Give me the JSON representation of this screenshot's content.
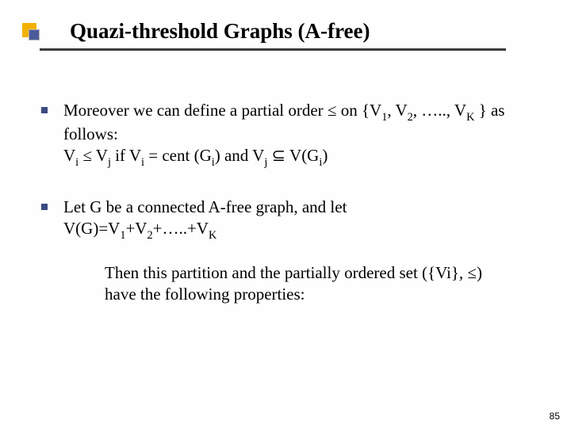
{
  "colors": {
    "ornament_gold": "#f2b100",
    "ornament_blue": "#4b5a9a",
    "underline": "#3b3b3b",
    "bullet": "#3b4a82",
    "text": "#000000",
    "background": "#fefefe"
  },
  "typography": {
    "title_fontsize_pt": 20,
    "title_weight": "bold",
    "body_fontsize_pt": 16,
    "body_family": "Times New Roman",
    "pagenum_fontsize_pt": 9,
    "pagenum_family": "Arial"
  },
  "title": "Quazi-threshold Graphs (A-free)",
  "bullets": [
    {
      "line1": "Moreover we can define a partial order ≤ on {V",
      "s1": "1",
      "mid1": ", V",
      "s2": "2",
      "mid2": ", ….., V",
      "s3": "K",
      "end1": " } as follows:",
      "line2a": "V",
      "l2s1": "i",
      "l2mid1": " ≤ V",
      "l2s2": "j",
      "l2mid2": "  if  V",
      "l2s3": "i",
      "l2mid3": " = cent (G",
      "l2s4": "i",
      "l2mid4": ") and V",
      "l2s5": "j",
      "l2mid5": " ",
      "subset": "⊆",
      "l2mid6": " V(G",
      "l2s6": "i",
      "l2end": ")"
    },
    {
      "b2line1": "Let G be a connected A-free graph, and let",
      "b2a": "V(G)=V",
      "b2s1": "1",
      "b2m1": "+V",
      "b2s2": "2",
      "b2m2": "+…..+V",
      "b2s3": "K"
    }
  ],
  "continuation": "Then this partition and the partially ordered set ({Vi}, ≤) have the following properties:",
  "page_number": "85"
}
